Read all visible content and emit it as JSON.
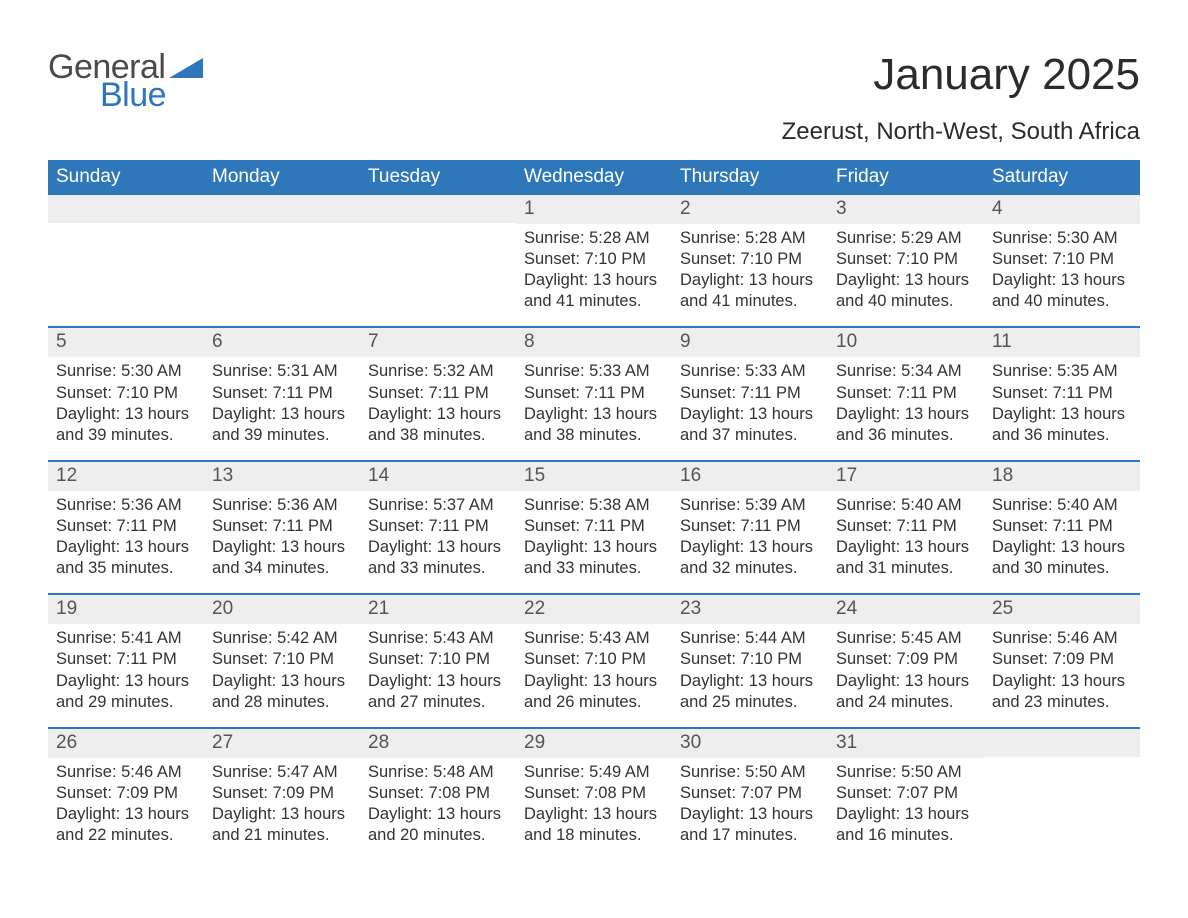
{
  "brand": {
    "part1": "General",
    "part2": "Blue",
    "shape_color": "#2f77bb",
    "text_gray": "#4a4a4a"
  },
  "title": "January 2025",
  "location": "Zeerust, North-West, South Africa",
  "colors": {
    "header_bg": "#2f77bb",
    "header_text": "#ffffff",
    "daynum_bg": "#eeeeee",
    "body_text": "#333333",
    "rule": "#2f77bb",
    "page_bg": "#ffffff"
  },
  "typography": {
    "title_fontsize_pt": 33,
    "location_fontsize_pt": 18,
    "header_fontsize_pt": 14,
    "daynum_fontsize_pt": 14,
    "body_fontsize_pt": 12
  },
  "layout": {
    "columns": 7,
    "rows": 5,
    "first_weekday": "Sunday"
  },
  "weekdays": [
    "Sunday",
    "Monday",
    "Tuesday",
    "Wednesday",
    "Thursday",
    "Friday",
    "Saturday"
  ],
  "labels": {
    "sunrise": "Sunrise",
    "sunset": "Sunset",
    "daylight": "Daylight"
  },
  "weeks": [
    [
      null,
      null,
      null,
      {
        "n": "1",
        "sunrise": "5:28 AM",
        "sunset": "7:10 PM",
        "daylight": "13 hours and 41 minutes."
      },
      {
        "n": "2",
        "sunrise": "5:28 AM",
        "sunset": "7:10 PM",
        "daylight": "13 hours and 41 minutes."
      },
      {
        "n": "3",
        "sunrise": "5:29 AM",
        "sunset": "7:10 PM",
        "daylight": "13 hours and 40 minutes."
      },
      {
        "n": "4",
        "sunrise": "5:30 AM",
        "sunset": "7:10 PM",
        "daylight": "13 hours and 40 minutes."
      }
    ],
    [
      {
        "n": "5",
        "sunrise": "5:30 AM",
        "sunset": "7:10 PM",
        "daylight": "13 hours and 39 minutes."
      },
      {
        "n": "6",
        "sunrise": "5:31 AM",
        "sunset": "7:11 PM",
        "daylight": "13 hours and 39 minutes."
      },
      {
        "n": "7",
        "sunrise": "5:32 AM",
        "sunset": "7:11 PM",
        "daylight": "13 hours and 38 minutes."
      },
      {
        "n": "8",
        "sunrise": "5:33 AM",
        "sunset": "7:11 PM",
        "daylight": "13 hours and 38 minutes."
      },
      {
        "n": "9",
        "sunrise": "5:33 AM",
        "sunset": "7:11 PM",
        "daylight": "13 hours and 37 minutes."
      },
      {
        "n": "10",
        "sunrise": "5:34 AM",
        "sunset": "7:11 PM",
        "daylight": "13 hours and 36 minutes."
      },
      {
        "n": "11",
        "sunrise": "5:35 AM",
        "sunset": "7:11 PM",
        "daylight": "13 hours and 36 minutes."
      }
    ],
    [
      {
        "n": "12",
        "sunrise": "5:36 AM",
        "sunset": "7:11 PM",
        "daylight": "13 hours and 35 minutes."
      },
      {
        "n": "13",
        "sunrise": "5:36 AM",
        "sunset": "7:11 PM",
        "daylight": "13 hours and 34 minutes."
      },
      {
        "n": "14",
        "sunrise": "5:37 AM",
        "sunset": "7:11 PM",
        "daylight": "13 hours and 33 minutes."
      },
      {
        "n": "15",
        "sunrise": "5:38 AM",
        "sunset": "7:11 PM",
        "daylight": "13 hours and 33 minutes."
      },
      {
        "n": "16",
        "sunrise": "5:39 AM",
        "sunset": "7:11 PM",
        "daylight": "13 hours and 32 minutes."
      },
      {
        "n": "17",
        "sunrise": "5:40 AM",
        "sunset": "7:11 PM",
        "daylight": "13 hours and 31 minutes."
      },
      {
        "n": "18",
        "sunrise": "5:40 AM",
        "sunset": "7:11 PM",
        "daylight": "13 hours and 30 minutes."
      }
    ],
    [
      {
        "n": "19",
        "sunrise": "5:41 AM",
        "sunset": "7:11 PM",
        "daylight": "13 hours and 29 minutes."
      },
      {
        "n": "20",
        "sunrise": "5:42 AM",
        "sunset": "7:10 PM",
        "daylight": "13 hours and 28 minutes."
      },
      {
        "n": "21",
        "sunrise": "5:43 AM",
        "sunset": "7:10 PM",
        "daylight": "13 hours and 27 minutes."
      },
      {
        "n": "22",
        "sunrise": "5:43 AM",
        "sunset": "7:10 PM",
        "daylight": "13 hours and 26 minutes."
      },
      {
        "n": "23",
        "sunrise": "5:44 AM",
        "sunset": "7:10 PM",
        "daylight": "13 hours and 25 minutes."
      },
      {
        "n": "24",
        "sunrise": "5:45 AM",
        "sunset": "7:09 PM",
        "daylight": "13 hours and 24 minutes."
      },
      {
        "n": "25",
        "sunrise": "5:46 AM",
        "sunset": "7:09 PM",
        "daylight": "13 hours and 23 minutes."
      }
    ],
    [
      {
        "n": "26",
        "sunrise": "5:46 AM",
        "sunset": "7:09 PM",
        "daylight": "13 hours and 22 minutes."
      },
      {
        "n": "27",
        "sunrise": "5:47 AM",
        "sunset": "7:09 PM",
        "daylight": "13 hours and 21 minutes."
      },
      {
        "n": "28",
        "sunrise": "5:48 AM",
        "sunset": "7:08 PM",
        "daylight": "13 hours and 20 minutes."
      },
      {
        "n": "29",
        "sunrise": "5:49 AM",
        "sunset": "7:08 PM",
        "daylight": "13 hours and 18 minutes."
      },
      {
        "n": "30",
        "sunrise": "5:50 AM",
        "sunset": "7:07 PM",
        "daylight": "13 hours and 17 minutes."
      },
      {
        "n": "31",
        "sunrise": "5:50 AM",
        "sunset": "7:07 PM",
        "daylight": "13 hours and 16 minutes."
      },
      null
    ]
  ]
}
